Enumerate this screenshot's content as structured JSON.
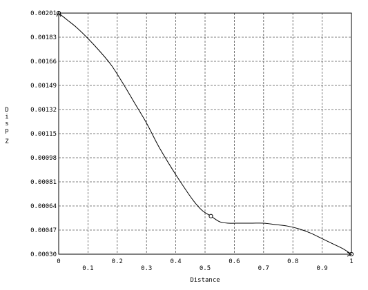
{
  "chart_data": {
    "type": "line",
    "xlabel": "Distance",
    "ylabel": "Disp Z",
    "xlim": [
      0,
      1
    ],
    "ylim": [
      0.0003,
      0.00201
    ],
    "xticks": [
      "0",
      "0.1",
      "0.2",
      "0.3",
      "0.4",
      "0.5",
      "0.6",
      "0.7",
      "0.8",
      "0.9",
      "1"
    ],
    "yticks": [
      "0.00201",
      "0.00183",
      "0.00166",
      "0.00149",
      "0.00132",
      "0.00115",
      "0.00098",
      "0.00081",
      "0.00064",
      "0.00047",
      "0.00030"
    ],
    "grid": true,
    "series": [
      {
        "x": [
          0,
          0.03,
          0.06,
          0.1,
          0.14,
          0.18,
          0.22,
          0.26,
          0.3,
          0.34,
          0.38,
          0.42,
          0.46,
          0.49,
          0.52,
          0.55,
          0.58,
          0.62,
          0.66,
          0.7,
          0.74,
          0.78,
          0.82,
          0.86,
          0.9,
          0.94,
          0.97,
          1.0
        ],
        "y": [
          0.00201,
          0.00196,
          0.00191,
          0.00183,
          0.00174,
          0.00164,
          0.00151,
          0.00137,
          0.00123,
          0.00107,
          0.00093,
          0.0008,
          0.00068,
          0.00061,
          0.00057,
          0.00053,
          0.00052,
          0.00052,
          0.00052,
          0.00052,
          0.00051,
          0.0005,
          0.00048,
          0.00045,
          0.00041,
          0.00037,
          0.00034,
          0.0003
        ]
      }
    ],
    "markers": [
      {
        "x": 0,
        "y": 0.00201
      },
      {
        "x": 0.52,
        "y": 0.00057
      },
      {
        "x": 1.0,
        "y": 0.0003
      }
    ]
  }
}
